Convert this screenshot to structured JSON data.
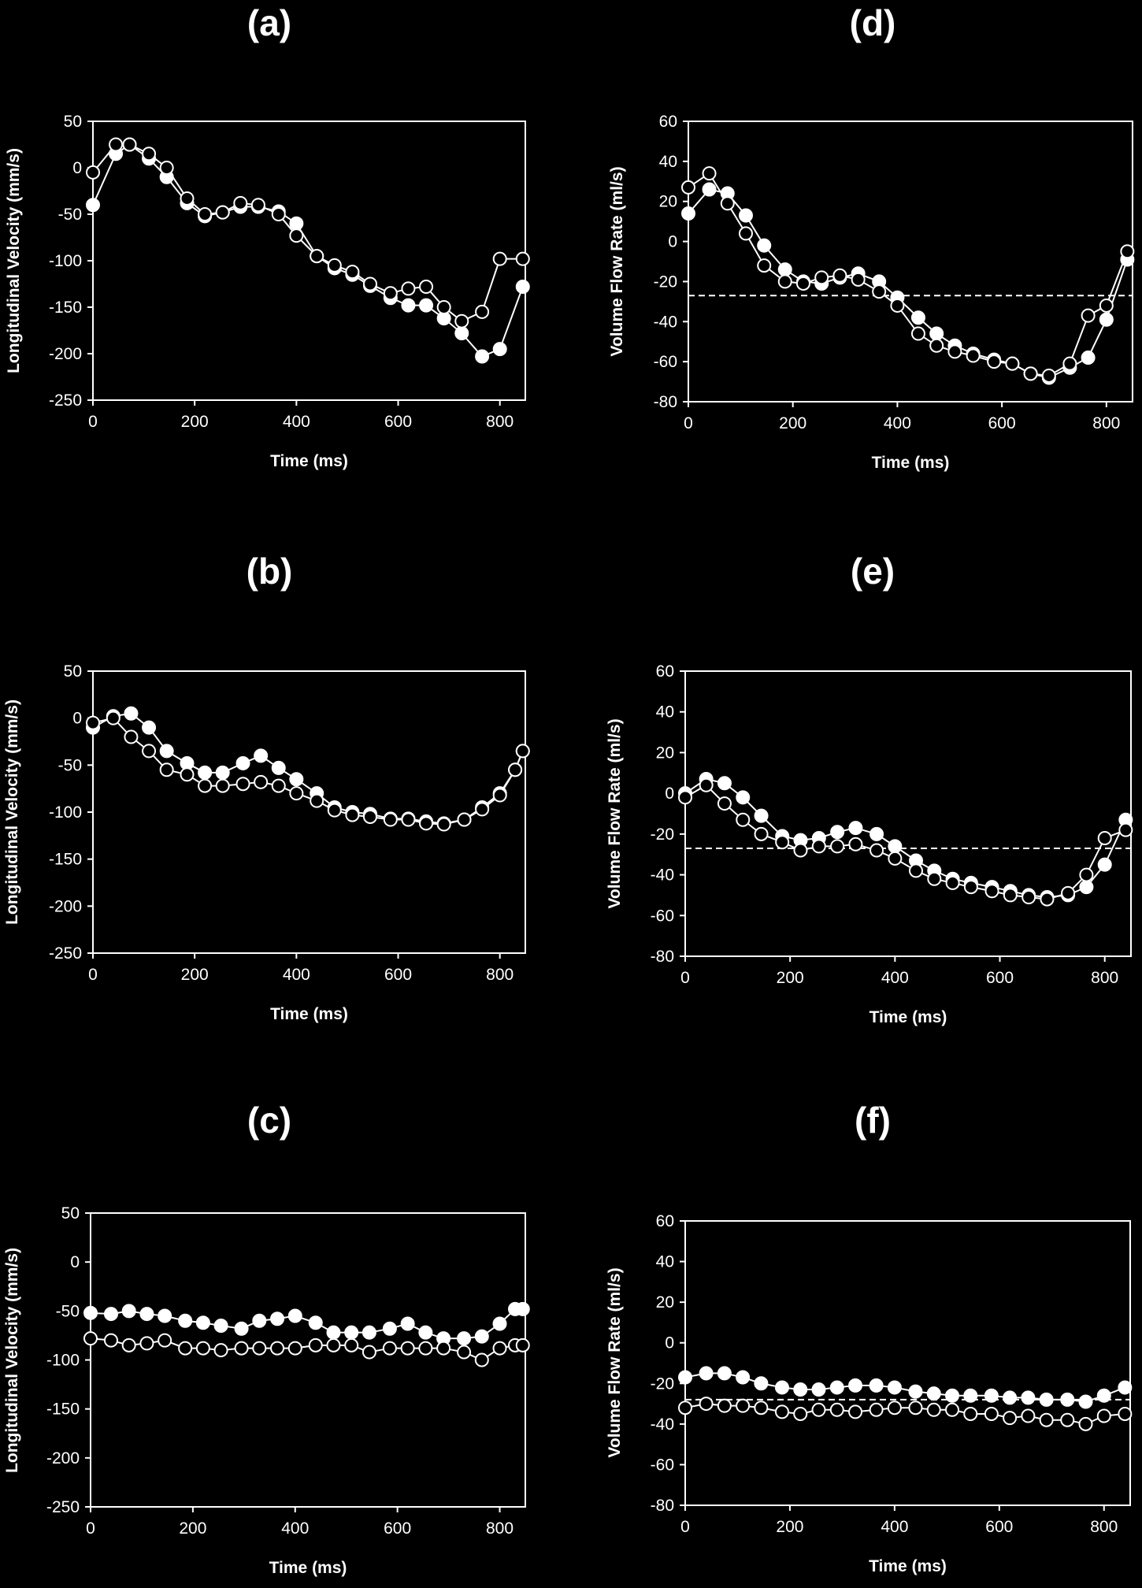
{
  "chart_data": [
    {
      "panel": "(a)",
      "type": "line",
      "xlabel": "Time (ms)",
      "ylabel": "Longitudinal Velocity (mm/s)",
      "xlim": [
        0,
        850
      ],
      "ylim": [
        -250,
        50
      ],
      "xticks": [
        0,
        200,
        400,
        600,
        800
      ],
      "yticks": [
        50,
        0,
        -50,
        -100,
        -150,
        -200,
        -250
      ],
      "reference_line": null,
      "series": [
        {
          "marker": "filled",
          "x": [
            0,
            45,
            72,
            110,
            145,
            185,
            220,
            255,
            290,
            325,
            365,
            400,
            440,
            475,
            510,
            545,
            585,
            620,
            655,
            690,
            725,
            765,
            800,
            845
          ],
          "y": [
            -40,
            15,
            25,
            10,
            -10,
            -38,
            -52,
            -48,
            -42,
            -42,
            -47,
            -60,
            -95,
            -108,
            -115,
            -127,
            -140,
            -148,
            -148,
            -162,
            -178,
            -203,
            -195,
            -128
          ]
        },
        {
          "marker": "open",
          "x": [
            0,
            45,
            72,
            110,
            145,
            185,
            220,
            255,
            290,
            325,
            365,
            400,
            440,
            475,
            510,
            545,
            585,
            620,
            655,
            690,
            725,
            765,
            800,
            845
          ],
          "y": [
            -5,
            25,
            25,
            15,
            0,
            -33,
            -50,
            -48,
            -38,
            -40,
            -50,
            -73,
            -95,
            -105,
            -112,
            -125,
            -135,
            -130,
            -128,
            -150,
            -165,
            -155,
            -98,
            -98
          ]
        }
      ]
    },
    {
      "panel": "(b)",
      "type": "line",
      "xlabel": "Time (ms)",
      "ylabel": "Longitudinal Velocity (mm/s)",
      "xlim": [
        0,
        850
      ],
      "ylim": [
        -250,
        50
      ],
      "xticks": [
        0,
        200,
        400,
        600,
        800
      ],
      "yticks": [
        50,
        0,
        -50,
        -100,
        -150,
        -200,
        -250
      ],
      "reference_line": null,
      "series": [
        {
          "marker": "filled",
          "x": [
            0,
            40,
            75,
            110,
            145,
            185,
            220,
            255,
            295,
            330,
            365,
            400,
            440,
            475,
            510,
            545,
            585,
            620,
            655,
            690,
            730,
            765,
            800,
            830,
            845
          ],
          "y": [
            -10,
            2,
            5,
            -10,
            -35,
            -48,
            -58,
            -58,
            -48,
            -40,
            -53,
            -65,
            -80,
            -95,
            -100,
            -102,
            -107,
            -107,
            -110,
            -112,
            -108,
            -95,
            -80,
            -55,
            -35
          ]
        },
        {
          "marker": "open",
          "x": [
            0,
            40,
            75,
            110,
            145,
            185,
            220,
            255,
            295,
            330,
            365,
            400,
            440,
            475,
            510,
            545,
            585,
            620,
            655,
            690,
            730,
            765,
            800,
            830,
            845
          ],
          "y": [
            -5,
            0,
            -20,
            -35,
            -55,
            -60,
            -72,
            -72,
            -70,
            -68,
            -72,
            -80,
            -88,
            -98,
            -103,
            -105,
            -108,
            -108,
            -112,
            -113,
            -108,
            -97,
            -82,
            -55,
            -35
          ]
        }
      ]
    },
    {
      "panel": "(c)",
      "type": "line",
      "xlabel": "Time (ms)",
      "ylabel": "Longitudinal Velocity (mm/s)",
      "xlim": [
        0,
        850
      ],
      "ylim": [
        -250,
        50
      ],
      "xticks": [
        0,
        200,
        400,
        600,
        800
      ],
      "yticks": [
        50,
        0,
        -50,
        -100,
        -150,
        -200,
        -250
      ],
      "reference_line": null,
      "series": [
        {
          "marker": "filled",
          "x": [
            0,
            40,
            75,
            110,
            145,
            185,
            220,
            255,
            295,
            330,
            365,
            400,
            440,
            475,
            510,
            545,
            585,
            620,
            655,
            690,
            730,
            765,
            800,
            830,
            845
          ],
          "y": [
            -52,
            -53,
            -50,
            -53,
            -55,
            -60,
            -62,
            -65,
            -68,
            -60,
            -58,
            -55,
            -62,
            -72,
            -72,
            -72,
            -68,
            -63,
            -72,
            -78,
            -78,
            -76,
            -63,
            -48,
            -48
          ]
        },
        {
          "marker": "open",
          "x": [
            0,
            40,
            75,
            110,
            145,
            185,
            220,
            255,
            295,
            330,
            365,
            400,
            440,
            475,
            510,
            545,
            585,
            620,
            655,
            690,
            730,
            765,
            800,
            830,
            845
          ],
          "y": [
            -78,
            -80,
            -85,
            -83,
            -80,
            -88,
            -88,
            -90,
            -88,
            -88,
            -88,
            -88,
            -85,
            -85,
            -85,
            -92,
            -88,
            -88,
            -88,
            -88,
            -92,
            -100,
            -88,
            -85,
            -85
          ]
        }
      ]
    },
    {
      "panel": "(d)",
      "type": "line",
      "xlabel": "Time (ms)",
      "ylabel": "Volume Flow Rate (ml/s)",
      "xlim": [
        0,
        850
      ],
      "ylim": [
        -80,
        60
      ],
      "xticks": [
        0,
        200,
        400,
        600,
        800
      ],
      "yticks": [
        60,
        40,
        20,
        0,
        -20,
        -40,
        -60,
        -80
      ],
      "reference_line": -27,
      "series": [
        {
          "marker": "filled",
          "x": [
            0,
            40,
            75,
            110,
            145,
            185,
            220,
            255,
            290,
            325,
            365,
            400,
            440,
            475,
            510,
            545,
            585,
            620,
            655,
            690,
            730,
            765,
            800,
            840
          ],
          "y": [
            14,
            26,
            24,
            13,
            -2,
            -14,
            -20,
            -21,
            -18,
            -16,
            -20,
            -28,
            -38,
            -46,
            -52,
            -56,
            -59,
            -61,
            -66,
            -68,
            -63,
            -58,
            -39,
            -9
          ]
        },
        {
          "marker": "open",
          "x": [
            0,
            40,
            75,
            110,
            145,
            185,
            220,
            255,
            290,
            325,
            365,
            400,
            440,
            475,
            510,
            545,
            585,
            620,
            655,
            690,
            730,
            765,
            800,
            840
          ],
          "y": [
            27,
            34,
            19,
            4,
            -12,
            -20,
            -21,
            -18,
            -17,
            -19,
            -25,
            -32,
            -46,
            -52,
            -55,
            -57,
            -60,
            -61,
            -66,
            -67,
            -61,
            -37,
            -32,
            -5
          ]
        }
      ]
    },
    {
      "panel": "(e)",
      "type": "line",
      "xlabel": "Time (ms)",
      "ylabel": "Volume Flow Rate (ml/s)",
      "xlim": [
        0,
        850
      ],
      "ylim": [
        -80,
        60
      ],
      "xticks": [
        0,
        200,
        400,
        600,
        800
      ],
      "yticks": [
        60,
        40,
        20,
        0,
        -20,
        -40,
        -60,
        -80
      ],
      "reference_line": -27,
      "series": [
        {
          "marker": "filled",
          "x": [
            0,
            40,
            75,
            110,
            145,
            185,
            220,
            255,
            290,
            325,
            365,
            400,
            440,
            475,
            510,
            545,
            585,
            620,
            655,
            690,
            730,
            765,
            800,
            840
          ],
          "y": [
            0,
            7,
            5,
            -2,
            -11,
            -21,
            -23,
            -22,
            -19,
            -17,
            -20,
            -26,
            -33,
            -38,
            -42,
            -44,
            -46,
            -48,
            -50,
            -51,
            -50,
            -46,
            -35,
            -13
          ]
        },
        {
          "marker": "open",
          "x": [
            0,
            40,
            75,
            110,
            145,
            185,
            220,
            255,
            290,
            325,
            365,
            400,
            440,
            475,
            510,
            545,
            585,
            620,
            655,
            690,
            730,
            765,
            800,
            840
          ],
          "y": [
            -2,
            4,
            -5,
            -13,
            -20,
            -24,
            -28,
            -26,
            -26,
            -25,
            -28,
            -32,
            -38,
            -42,
            -44,
            -46,
            -48,
            -50,
            -51,
            -52,
            -49,
            -40,
            -22,
            -18
          ]
        }
      ]
    },
    {
      "panel": "(f)",
      "type": "line",
      "xlabel": "Time (ms)",
      "ylabel": "Volume Flow Rate (ml/s)",
      "xlim": [
        0,
        850
      ],
      "ylim": [
        -80,
        60
      ],
      "xticks": [
        0,
        200,
        400,
        600,
        800
      ],
      "yticks": [
        60,
        40,
        20,
        0,
        -20,
        -40,
        -60,
        -80
      ],
      "reference_line": -28,
      "series": [
        {
          "marker": "filled",
          "x": [
            0,
            40,
            75,
            110,
            145,
            185,
            220,
            255,
            290,
            325,
            365,
            400,
            440,
            475,
            510,
            545,
            585,
            620,
            655,
            690,
            730,
            765,
            800,
            840
          ],
          "y": [
            -17,
            -15,
            -15,
            -17,
            -20,
            -22,
            -23,
            -23,
            -22,
            -21,
            -21,
            -22,
            -24,
            -25,
            -26,
            -26,
            -26,
            -27,
            -27,
            -28,
            -28,
            -29,
            -26,
            -22
          ]
        },
        {
          "marker": "open",
          "x": [
            0,
            40,
            75,
            110,
            145,
            185,
            220,
            255,
            290,
            325,
            365,
            400,
            440,
            475,
            510,
            545,
            585,
            620,
            655,
            690,
            730,
            765,
            800,
            840
          ],
          "y": [
            -32,
            -30,
            -31,
            -31,
            -32,
            -34,
            -35,
            -33,
            -33,
            -34,
            -33,
            -32,
            -32,
            -33,
            -33,
            -35,
            -35,
            -37,
            -36,
            -38,
            -38,
            -40,
            -36,
            -35
          ]
        }
      ]
    }
  ]
}
